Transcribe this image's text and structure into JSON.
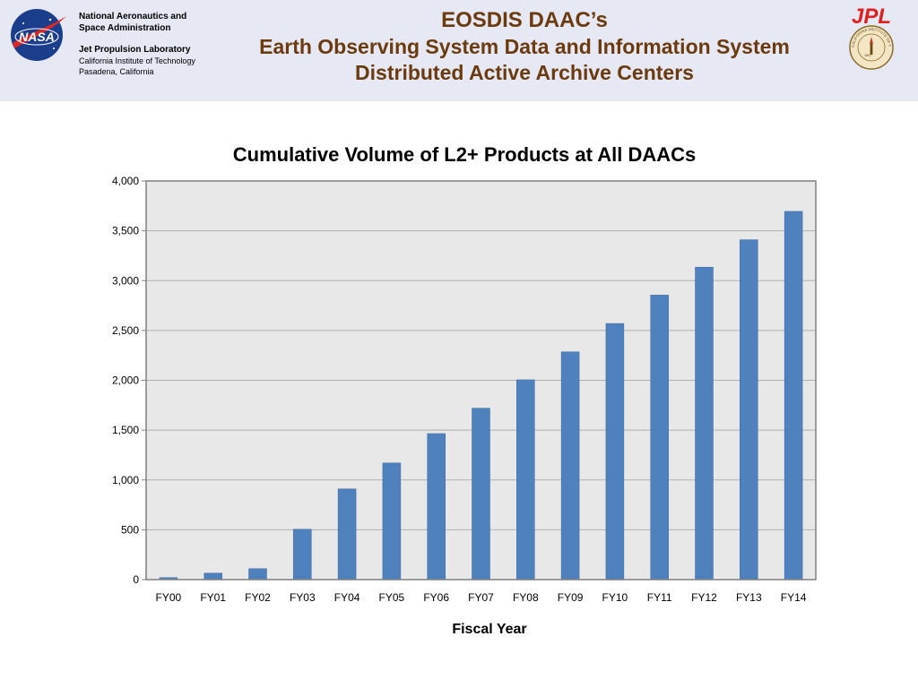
{
  "header": {
    "org_line1": "National Aeronautics and",
    "org_line2": "Space Administration",
    "lab_name": "Jet Propulsion Laboratory",
    "lab_inst": "California Institute of Technology",
    "lab_city": "Pasadena, California",
    "title_line1": "EOSDIS DAAC’s",
    "title_line2": "Earth Observing System Data and Information System",
    "title_line3": "Distributed Active Archive Centers",
    "nasa_logo_text": "NASA",
    "jpl_logo_text": "JPL",
    "seal_text": "CALIFORNIA INSTITUTE OF TECHNOLOGY",
    "seal_year": "1891",
    "title_color": "#6b3a0e",
    "nasa_blue": "#1a3d8c",
    "jpl_red": "#e02020"
  },
  "chart_data": {
    "type": "bar",
    "title": "Cumulative Volume of L2+ Products at All DAACs",
    "xlabel": "Fiscal Year",
    "ylabel": "",
    "categories": [
      "FY00",
      "FY01",
      "FY02",
      "FY03",
      "FY04",
      "FY05",
      "FY06",
      "FY07",
      "FY08",
      "FY09",
      "FY10",
      "FY11",
      "FY12",
      "FY13",
      "FY14"
    ],
    "values": [
      20,
      65,
      110,
      505,
      910,
      1170,
      1465,
      1720,
      2005,
      2285,
      2570,
      2855,
      3135,
      3410,
      3695
    ],
    "ylim": [
      0,
      4000
    ],
    "yticks": [
      0,
      500,
      1000,
      1500,
      2000,
      2500,
      3000,
      3500,
      4000
    ],
    "ytick_labels": [
      "0",
      "500",
      "1,000",
      "1,500",
      "2,000",
      "2,500",
      "3,000",
      "3,500",
      "4,000"
    ],
    "grid": true,
    "legend": "none",
    "bar_color": "#4f81bd",
    "plot_bg": "#e8e8e8"
  }
}
